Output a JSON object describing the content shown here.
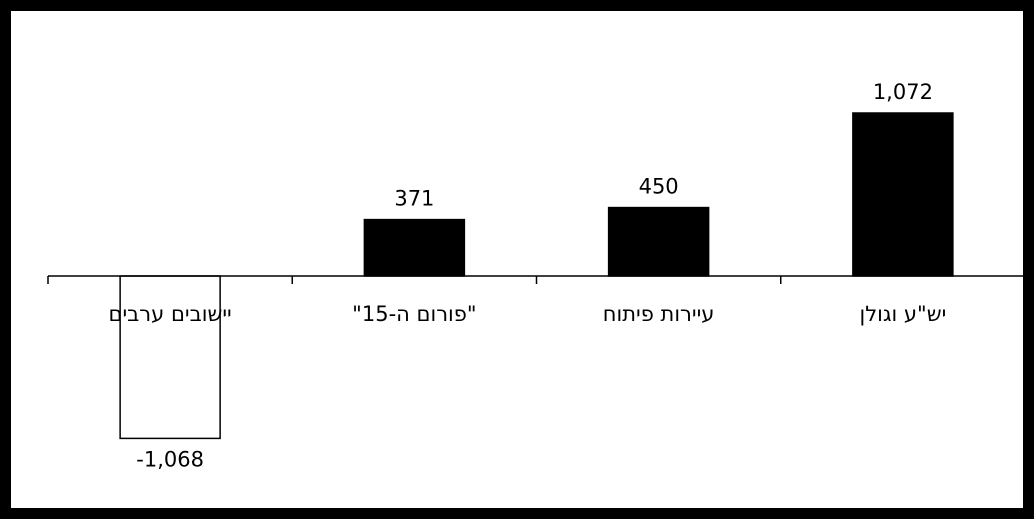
{
  "chart_data": {
    "type": "bar",
    "categories": [
      "יישובים ערבים",
      "\"פורום ה-15\"",
      "עיירות פיתוח",
      "יש\"ע וגולן"
    ],
    "values": [
      -1068,
      371,
      450,
      1072
    ],
    "value_labels": [
      "-1,068",
      "371",
      "450",
      "1,072"
    ],
    "title": "",
    "xlabel": "",
    "ylabel": "",
    "ylim": [
      -1200,
      1300
    ],
    "grid": false,
    "legend": "none",
    "positive_color": "#000000",
    "negative_color": "#ffffff",
    "outline_color": "#000000"
  }
}
